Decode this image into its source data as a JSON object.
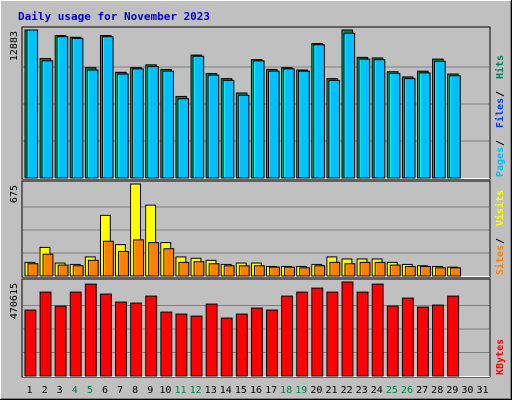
{
  "title": "Daily usage for November 2023",
  "colors": {
    "background": "#c0c0c0",
    "plot_background": "#c0c0c0",
    "title": "#0000cc",
    "hits": "#00805c",
    "files": "#0040ff",
    "pages": "#00c0ff",
    "visits": "#ffff00",
    "sites": "#ff8000",
    "kbytes": "#ff0000",
    "weekend": "#008040",
    "weekday": "#000000"
  },
  "chart_data": [
    {
      "type": "bar",
      "panel": "top",
      "y_max_label": "12883",
      "ylim": [
        0,
        12883
      ],
      "legend": [
        {
          "label": "Pages",
          "color": "#00c0ff"
        },
        {
          "label": "Files",
          "color": "#0040ff"
        },
        {
          "label": "Hits",
          "color": "#00805c"
        }
      ],
      "categories": [
        "1",
        "2",
        "3",
        "4",
        "5",
        "6",
        "7",
        "8",
        "9",
        "10",
        "11",
        "12",
        "13",
        "14",
        "15",
        "16",
        "17",
        "18",
        "19",
        "20",
        "21",
        "22",
        "23",
        "24",
        "25",
        "26",
        "27",
        "28",
        "29",
        "30",
        "31"
      ],
      "series": [
        {
          "name": "Hits",
          "values": [
            12883,
            10400,
            12400,
            12250,
            9600,
            12400,
            9200,
            9600,
            9850,
            9450,
            7100,
            10700,
            9100,
            8650,
            7400,
            10300,
            9450,
            9600,
            9400,
            11700,
            8650,
            12883,
            10500,
            10450,
            9250,
            8800,
            9300,
            10350,
            9050,
            0,
            0
          ]
        },
        {
          "name": "Files",
          "values": [
            12883,
            10200,
            12300,
            12150,
            9400,
            12300,
            9050,
            9500,
            9700,
            9300,
            6900,
            10600,
            8950,
            8500,
            7200,
            10200,
            9300,
            9500,
            9300,
            11600,
            8500,
            12600,
            10350,
            10300,
            9100,
            8650,
            9150,
            10150,
            8900,
            0,
            0
          ]
        },
        {
          "name": "Pages",
          "values": [
            12883,
            10200,
            12300,
            12150,
            9400,
            12300,
            9050,
            9500,
            9700,
            9300,
            6900,
            10600,
            8950,
            8500,
            7200,
            10200,
            9300,
            9500,
            9300,
            11600,
            8500,
            12600,
            10350,
            10300,
            9100,
            8650,
            9150,
            10150,
            8900,
            0,
            0
          ]
        }
      ]
    },
    {
      "type": "bar",
      "panel": "middle",
      "y_max_label": "675",
      "ylim": [
        0,
        675
      ],
      "legend": [
        {
          "label": "Sites",
          "color": "#ff8000"
        },
        {
          "label": "Visits",
          "color": "#ffff00"
        }
      ],
      "categories": [
        "1",
        "2",
        "3",
        "4",
        "5",
        "6",
        "7",
        "8",
        "9",
        "10",
        "11",
        "12",
        "13",
        "14",
        "15",
        "16",
        "17",
        "18",
        "19",
        "20",
        "21",
        "22",
        "23",
        "24",
        "25",
        "26",
        "27",
        "28",
        "29",
        "30",
        "31"
      ],
      "series": [
        {
          "name": "Visits",
          "values": [
            100,
            210,
            95,
            85,
            140,
            445,
            230,
            675,
            520,
            245,
            140,
            130,
            115,
            85,
            95,
            95,
            70,
            70,
            70,
            85,
            140,
            125,
            125,
            125,
            100,
            85,
            75,
            70,
            65,
            0,
            0
          ]
        },
        {
          "name": "Sites",
          "values": [
            90,
            160,
            80,
            75,
            115,
            255,
            180,
            265,
            245,
            200,
            100,
            105,
            90,
            75,
            75,
            75,
            65,
            65,
            60,
            75,
            100,
            90,
            100,
            100,
            80,
            70,
            70,
            60,
            60,
            0,
            0
          ]
        }
      ]
    },
    {
      "type": "bar",
      "panel": "bottom",
      "y_max_label": "470615",
      "ylim": [
        0,
        470615
      ],
      "legend": [
        {
          "label": "KBytes",
          "color": "#ff0000"
        }
      ],
      "categories": [
        "1",
        "2",
        "3",
        "4",
        "5",
        "6",
        "7",
        "8",
        "9",
        "10",
        "11",
        "12",
        "13",
        "14",
        "15",
        "16",
        "17",
        "18",
        "19",
        "20",
        "21",
        "22",
        "23",
        "24",
        "25",
        "26",
        "27",
        "28",
        "29",
        "30",
        "31"
      ],
      "series": [
        {
          "name": "KBytes",
          "values": [
            330000,
            420000,
            350000,
            420000,
            460000,
            410000,
            370000,
            365000,
            400000,
            320000,
            310000,
            300000,
            360000,
            290000,
            310000,
            340000,
            330000,
            400000,
            420000,
            440000,
            420000,
            470615,
            420000,
            460000,
            350000,
            390000,
            345000,
            355000,
            400000,
            0,
            0
          ]
        }
      ]
    }
  ],
  "x_labels": [
    "1",
    "2",
    "3",
    "4",
    "5",
    "6",
    "7",
    "8",
    "9",
    "10",
    "11",
    "12",
    "13",
    "14",
    "15",
    "16",
    "17",
    "18",
    "19",
    "20",
    "21",
    "22",
    "23",
    "24",
    "25",
    "26",
    "27",
    "28",
    "29",
    "30",
    "31"
  ],
  "weekend_days": [
    4,
    5,
    11,
    12,
    18,
    19,
    25,
    26
  ]
}
